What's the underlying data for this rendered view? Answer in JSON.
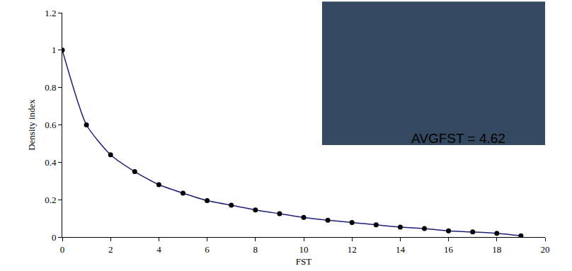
{
  "chart_data": {
    "type": "line",
    "x": [
      0,
      1,
      2,
      3,
      4,
      5,
      6,
      7,
      8,
      9,
      10,
      11,
      12,
      13,
      14,
      15,
      16,
      17,
      18,
      19
    ],
    "values": [
      1,
      0.6,
      0.44,
      0.35,
      0.28,
      0.235,
      0.195,
      0.17,
      0.145,
      0.125,
      0.105,
      0.09,
      0.078,
      0.065,
      0.053,
      0.045,
      0.033,
      0.027,
      0.02,
      0.007
    ],
    "x_label": "FST",
    "y_label": "Density index",
    "xlim": [
      0,
      20
    ],
    "xticks": [
      0,
      2,
      4,
      6,
      8,
      10,
      12,
      14,
      16,
      18,
      20
    ],
    "ylim": [
      0,
      1.2
    ],
    "yticks": [
      0,
      0.2,
      0.4,
      0.6,
      0.8,
      1,
      1.2
    ],
    "annotations": [
      "AVGFST = 4.62"
    ],
    "color": "#1f1f7a",
    "marker": "circle",
    "grid": false
  }
}
